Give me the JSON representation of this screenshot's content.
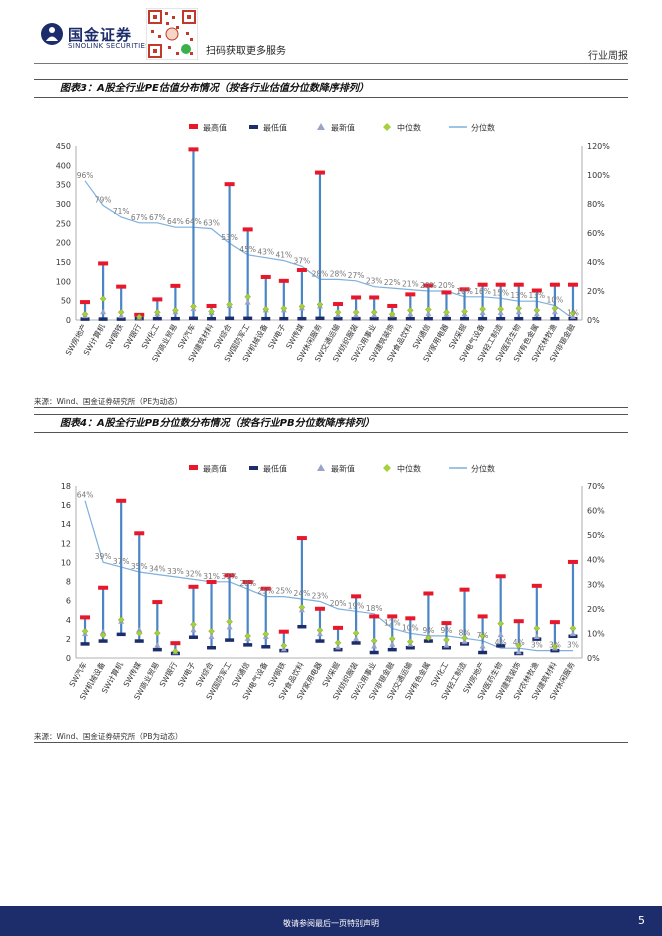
{
  "header": {
    "logo_cn": "国金证券",
    "logo_en": "SINOLINK SECURITIES",
    "qr_caption": "扫码获取更多服务",
    "section": "行业周报"
  },
  "figures": [
    {
      "title": "图表3：A股全行业PE估值分布情况（按各行业估值分位数降序排列）",
      "source": "来源：Wind、国金证券研究所（PE为动态）"
    },
    {
      "title": "图表4：A股全行业PB分位数分布情况（按各行业PB分位数降序排列）",
      "source": "来源：Wind、国金证券研究所（PB为动态）"
    }
  ],
  "footer": {
    "disclaimer": "敬请参阅最后一页特别声明",
    "page": "5"
  },
  "colors": {
    "max": "#e8182a",
    "min": "#1d2d6b",
    "latest": "#9aa3c9",
    "median": "#a6d13a",
    "range": "#4a86c5",
    "pct": "#7fb0dc"
  },
  "chart_data": [
    {
      "type": "bar",
      "title": "图表3：A股全行业PE估值分布情况（按各行业估值分位数降序排列）",
      "legend": [
        "最高值",
        "最低值",
        "最新值",
        "中位数",
        "分位数"
      ],
      "ylim": [
        0,
        450
      ],
      "yticks": [
        0,
        50,
        100,
        150,
        200,
        250,
        300,
        350,
        400,
        450
      ],
      "ytick_labels": [
        "0",
        "50",
        "100",
        "150",
        "200",
        "250",
        "300",
        "350",
        "400",
        "450"
      ],
      "y2lim": [
        0,
        120
      ],
      "y2ticks": [
        0,
        20,
        40,
        60,
        80,
        100,
        120
      ],
      "y2tick_labels": [
        "0%",
        "20%",
        "40%",
        "60%",
        "80%",
        "100%",
        "120%"
      ],
      "categories": [
        "SW房地产",
        "SW计算机",
        "SW钢铁",
        "SW银行",
        "SW化工",
        "SW商业贸易",
        "SW汽车",
        "SW建筑材料",
        "SW综合",
        "SW国防军工",
        "SW机械设备",
        "SW电子",
        "SW传媒",
        "SW休闲服务",
        "SW交通运输",
        "SW纺织服装",
        "SW公用事业",
        "SW建筑装饰",
        "SW食品饮料",
        "SW通信",
        "SW家用电器",
        "SW采掘",
        "SW电气设备",
        "SW轻工制造",
        "SW医药生物",
        "SW有色金属",
        "SW农林牧渔",
        "SW非银金融"
      ],
      "max": [
        45,
        145,
        85,
        12,
        52,
        87,
        440,
        35,
        350,
        233,
        110,
        100,
        128,
        380,
        40,
        57,
        57,
        35,
        65,
        88,
        70,
        78,
        90,
        90,
        90,
        75,
        90,
        90
      ],
      "min": [
        3,
        3,
        3,
        4,
        4,
        4,
        5,
        4,
        5,
        5,
        4,
        4,
        4,
        5,
        4,
        4,
        4,
        4,
        4,
        4,
        4,
        4,
        4,
        4,
        4,
        4,
        4,
        4
      ],
      "latest": [
        10,
        20,
        10,
        6,
        15,
        20,
        28,
        18,
        36,
        45,
        25,
        25,
        30,
        35,
        12,
        12,
        12,
        12,
        15,
        16,
        14,
        15,
        18,
        18,
        20,
        15,
        20,
        8
      ],
      "median": [
        15,
        55,
        20,
        8,
        20,
        25,
        35,
        22,
        40,
        60,
        28,
        30,
        35,
        40,
        20,
        20,
        20,
        15,
        25,
        27,
        20,
        22,
        28,
        28,
        30,
        25,
        30,
        18
      ],
      "percentile": [
        96,
        79,
        71,
        67,
        67,
        64,
        64,
        63,
        53,
        45,
        43,
        41,
        37,
        28,
        28,
        27,
        23,
        22,
        21,
        20,
        20,
        16,
        16,
        15,
        13,
        13,
        10,
        1
      ],
      "percentile_labels": [
        "96%",
        "79%",
        "71%",
        "67%",
        "67%",
        "64%",
        "64%",
        "63%",
        "53%",
        "45%",
        "43%",
        "41%",
        "37%",
        "28%",
        "28%",
        "27%",
        "23%",
        "22%",
        "21%",
        "20%",
        "20%",
        "16%",
        "16%",
        "15%",
        "13%",
        "13%",
        "10%",
        "1%"
      ]
    },
    {
      "type": "bar",
      "title": "图表4：A股全行业PB分位数分布情况（按各行业PB分位数降序排列）",
      "legend": [
        "最高值",
        "最低值",
        "最新值",
        "中位数",
        "分位数"
      ],
      "ylim": [
        0,
        18
      ],
      "yticks": [
        0,
        2,
        4,
        6,
        8,
        10,
        12,
        14,
        16,
        18
      ],
      "ytick_labels": [
        "0",
        "2",
        "4",
        "6",
        "8",
        "10",
        "12",
        "14",
        "16",
        "18"
      ],
      "y2lim": [
        0,
        70
      ],
      "y2ticks": [
        0,
        10,
        20,
        30,
        40,
        50,
        60,
        70
      ],
      "y2tick_labels": [
        "0%",
        "10%",
        "20%",
        "30%",
        "40%",
        "50%",
        "60%",
        "70%"
      ],
      "categories": [
        "SW汽车",
        "SW机械设备",
        "SW计算机",
        "SW传媒",
        "SW商业贸易",
        "SW银行",
        "SW电子",
        "SW综合",
        "SW国防军工",
        "SW通信",
        "SW电气设备",
        "SW钢铁",
        "SW食品饮料",
        "SW家用电器",
        "SW采掘",
        "SW纺织服装",
        "SW公用事业",
        "SW非银金融",
        "SW交通运输",
        "SW有色金属",
        "SW化工",
        "SW轻工制造",
        "SW房地产",
        "SW医药生物",
        "SW建筑装饰",
        "SW农林牧渔",
        "SW建筑材料",
        "SW休闲服务"
      ],
      "max": [
        4.2,
        7.3,
        16.4,
        13,
        5.8,
        1.5,
        7.4,
        7.9,
        8.6,
        7.9,
        7.2,
        2.7,
        12.5,
        5.1,
        3.1,
        6.4,
        4.3,
        4.3,
        4.1,
        6.7,
        3.6,
        7.1,
        4.3,
        8.5,
        3.8,
        7.5,
        3.7,
        10
      ],
      "min": [
        1.5,
        1.8,
        2.5,
        1.8,
        0.9,
        0.5,
        2.2,
        1.1,
        1.9,
        1.4,
        1.2,
        0.8,
        3.3,
        1.8,
        0.9,
        1.6,
        0.6,
        0.9,
        1.1,
        1.8,
        1.1,
        1.5,
        0.6,
        1.3,
        0.5,
        2.0,
        0.8,
        2.3
      ],
      "latest": [
        2.5,
        2.7,
        3.8,
        2.9,
        1.3,
        0.6,
        2.9,
        2.2,
        3.2,
        2.0,
        2.2,
        0.9,
        5.0,
        2.5,
        1.1,
        2.0,
        1.2,
        1.4,
        1.4,
        2.3,
        1.3,
        1.7,
        1.2,
        2.4,
        0.6,
        2.2,
        1.0,
        2.5
      ],
      "median": [
        2.8,
        2.4,
        4.0,
        2.6,
        2.6,
        0.7,
        3.5,
        2.8,
        3.8,
        2.3,
        2.5,
        1.3,
        5.3,
        2.9,
        1.6,
        2.6,
        1.8,
        2.0,
        1.7,
        2.1,
        1.9,
        2.1,
        2.3,
        3.6,
        1.3,
        3.1,
        1.2,
        3.1
      ],
      "percentile": [
        64,
        39,
        37,
        35,
        34,
        33,
        32,
        31,
        31,
        28,
        25,
        25,
        24,
        23,
        20,
        19,
        18,
        12,
        10,
        9,
        9,
        8,
        7,
        4,
        4,
        3,
        3,
        3
      ],
      "percentile_labels": [
        "64%",
        "39%",
        "37%",
        "35%",
        "34%",
        "33%",
        "32%",
        "31%",
        "31%",
        "28%",
        "25%",
        "25%",
        "24%",
        "23%",
        "20%",
        "19%",
        "18%",
        "12%",
        "10%",
        "9%",
        "9%",
        "8%",
        "7%",
        "4%",
        "4%",
        "3%",
        "3%",
        "3%"
      ]
    }
  ]
}
